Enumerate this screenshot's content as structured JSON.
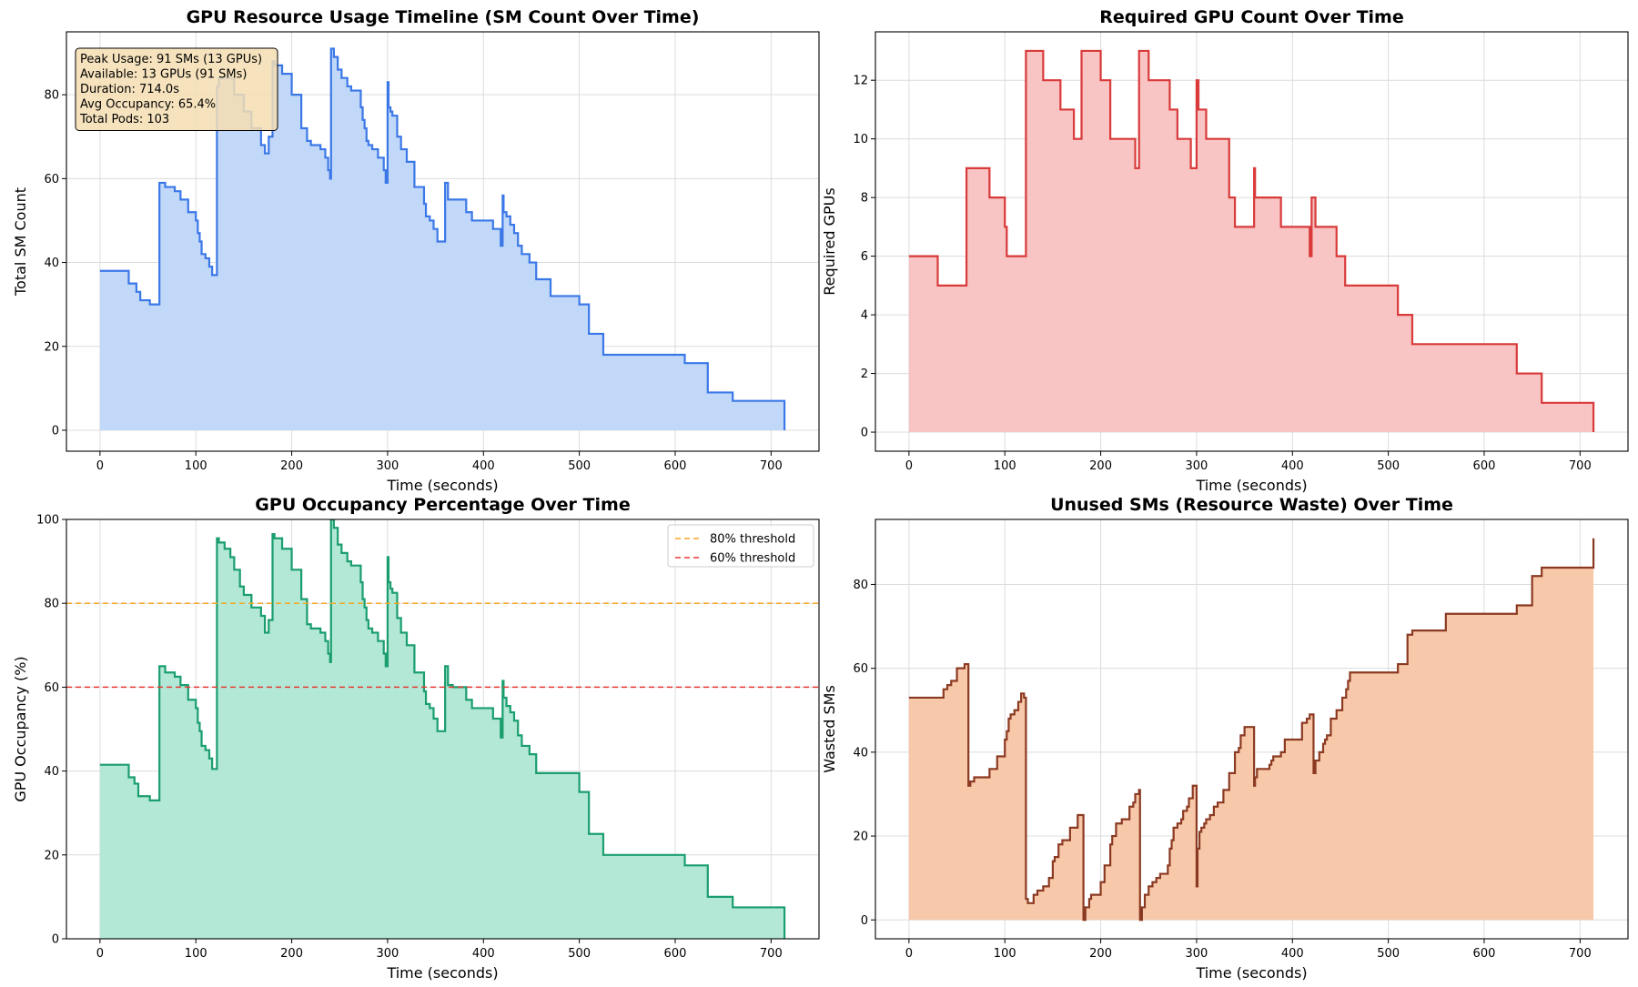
{
  "chart_data": [
    {
      "id": "sm",
      "type": "area",
      "title": "GPU Resource Usage Timeline (SM Count Over Time)",
      "xlabel": "Time (seconds)",
      "ylabel": "Total SM Count",
      "xlim": [
        -35,
        750
      ],
      "ylim": [
        -5,
        95
      ],
      "xticks": [
        0,
        100,
        200,
        300,
        400,
        500,
        600,
        700
      ],
      "yticks": [
        0,
        20,
        40,
        60,
        80
      ],
      "colors": {
        "line": "#3b78e7",
        "fill": "#c2d8f8"
      },
      "grid": true,
      "annotation": [
        "Peak Usage: 91 SMs (13 GPUs)",
        "Available: 13 GPUs (91 SMs)",
        "Duration: 714.0s",
        "Avg Occupancy: 65.4%",
        "Total Pods: 103"
      ],
      "x": [
        0,
        30,
        38,
        42,
        52,
        60,
        62,
        68,
        78,
        84,
        92,
        100,
        102,
        104,
        106,
        110,
        114,
        117,
        122,
        124,
        140,
        150,
        158,
        168,
        172,
        176,
        180,
        182,
        190,
        200,
        210,
        216,
        220,
        230,
        235,
        238,
        240,
        241,
        244,
        248,
        252,
        258,
        262,
        272,
        274,
        276,
        278,
        280,
        284,
        290,
        296,
        298,
        300,
        301,
        303,
        305,
        310,
        314,
        320,
        328,
        338,
        340,
        344,
        348,
        352,
        360,
        361,
        363,
        368,
        382,
        388,
        392,
        410,
        418,
        420,
        421,
        424,
        428,
        432,
        436,
        440,
        448,
        455,
        470,
        500,
        510,
        525,
        560,
        610,
        614,
        634,
        660,
        700,
        714
      ],
      "y": [
        38,
        35,
        33,
        31,
        30,
        30,
        59,
        58,
        57,
        55,
        52,
        50,
        47,
        45,
        42,
        41,
        39,
        37,
        82,
        84,
        80,
        76,
        72,
        68,
        66,
        70,
        88,
        87,
        85,
        80,
        72,
        69,
        68,
        67,
        65,
        62,
        60,
        91,
        89,
        86,
        84,
        82,
        81,
        77,
        74,
        72,
        69,
        68,
        67,
        65,
        62,
        59,
        83,
        77,
        76,
        75,
        70,
        67,
        64,
        58,
        54,
        51,
        50,
        48,
        45,
        59,
        59,
        55,
        55,
        52,
        50,
        50,
        48,
        44,
        56,
        52,
        51,
        49,
        47,
        44,
        42,
        40,
        36,
        32,
        30,
        23,
        18,
        18,
        16,
        16,
        9,
        7,
        7,
        0
      ]
    },
    {
      "id": "gpus",
      "type": "area",
      "title": "Required GPU Count Over Time",
      "xlabel": "Time (seconds)",
      "ylabel": "Required GPUs",
      "xlim": [
        -35,
        750
      ],
      "ylim": [
        -0.65,
        13.65
      ],
      "xticks": [
        0,
        100,
        200,
        300,
        400,
        500,
        600,
        700
      ],
      "yticks": [
        0,
        2,
        4,
        6,
        8,
        10,
        12
      ],
      "colors": {
        "line": "#d93a3a",
        "fill": "#f8c4c4"
      },
      "grid": true,
      "x": [
        0,
        30,
        60,
        84,
        100,
        102,
        122,
        124,
        140,
        158,
        172,
        180,
        182,
        200,
        210,
        236,
        240,
        241,
        250,
        272,
        280,
        294,
        298,
        300,
        302,
        310,
        334,
        340,
        348,
        360,
        361,
        363,
        388,
        410,
        415,
        418,
        420,
        424,
        428,
        446,
        455,
        510,
        525,
        600,
        634,
        660,
        714
      ],
      "y": [
        6,
        5,
        9,
        8,
        7,
        6,
        13,
        13,
        12,
        11,
        10,
        13,
        13,
        12,
        10,
        9,
        13,
        13,
        12,
        11,
        10,
        9,
        9,
        12,
        11,
        10,
        8,
        7,
        7,
        9,
        8,
        8,
        7,
        7,
        7,
        6,
        8,
        7,
        7,
        6,
        5,
        4,
        3,
        3,
        2,
        1,
        0
      ]
    },
    {
      "id": "occupancy",
      "type": "area",
      "title": "GPU Occupancy Percentage Over Time",
      "xlabel": "Time (seconds)",
      "ylabel": "GPU Occupancy (%)",
      "xlim": [
        -35,
        750
      ],
      "ylim": [
        0,
        100
      ],
      "xticks": [
        0,
        100,
        200,
        300,
        400,
        500,
        600,
        700
      ],
      "yticks": [
        0,
        20,
        40,
        60,
        80,
        100
      ],
      "colors": {
        "line": "#1a9e6e",
        "fill": "#b3e8d6"
      },
      "grid": true,
      "thresholds": [
        {
          "label": "80% threshold",
          "value": 80,
          "color": "#f5a623"
        },
        {
          "label": "60% threshold",
          "value": 60,
          "color": "#e53935"
        }
      ],
      "legend_position": "upper right",
      "x": [
        0,
        30,
        36,
        40,
        52,
        60,
        62,
        68,
        78,
        84,
        92,
        100,
        102,
        104,
        106,
        110,
        114,
        117,
        122,
        124,
        130,
        136,
        140,
        146,
        150,
        158,
        168,
        172,
        176,
        180,
        182,
        190,
        200,
        210,
        216,
        220,
        230,
        235,
        238,
        240,
        241,
        244,
        248,
        252,
        258,
        262,
        272,
        274,
        276,
        278,
        280,
        284,
        290,
        296,
        298,
        300,
        301,
        303,
        305,
        310,
        314,
        320,
        328,
        338,
        340,
        344,
        348,
        352,
        360,
        361,
        363,
        368,
        382,
        388,
        392,
        410,
        418,
        420,
        421,
        424,
        428,
        432,
        436,
        440,
        448,
        455,
        500,
        510,
        525,
        560,
        610,
        614,
        634,
        660,
        714
      ],
      "y": [
        41.5,
        38.5,
        37,
        34,
        33,
        33,
        65,
        63.5,
        62.5,
        60.5,
        57,
        55,
        51.5,
        49.5,
        46,
        45,
        43,
        40.5,
        95.5,
        94.5,
        93,
        91,
        88,
        84,
        82,
        79,
        77,
        73,
        76,
        96.5,
        95.5,
        93,
        88,
        81,
        75,
        74,
        73,
        71,
        68,
        66,
        100,
        98,
        94,
        92,
        90,
        89,
        85,
        81,
        79,
        76,
        74,
        73,
        71,
        68,
        65,
        91,
        85,
        83.5,
        82.5,
        76.5,
        73,
        70,
        63.5,
        59,
        56,
        55,
        52.5,
        49.5,
        65,
        65,
        60.5,
        60,
        57,
        55,
        55,
        52.5,
        48,
        61.5,
        57.5,
        55.5,
        54,
        52,
        48.5,
        46,
        44,
        39.5,
        35,
        25,
        20,
        20,
        17.5,
        17.5,
        10,
        7.5,
        0
      ]
    },
    {
      "id": "waste",
      "type": "area",
      "title": "Unused SMs (Resource Waste) Over Time",
      "xlabel": "Time (seconds)",
      "ylabel": "Wasted SMs",
      "xlim": [
        -35,
        750
      ],
      "ylim": [
        -4.5,
        95.5
      ],
      "xticks": [
        0,
        100,
        200,
        300,
        400,
        500,
        600,
        700
      ],
      "yticks": [
        0,
        20,
        40,
        60,
        80
      ],
      "colors": {
        "line": "#8b3a22",
        "fill": "#f8c8aa"
      },
      "grid": true,
      "x": [
        0,
        30,
        36,
        40,
        44,
        50,
        58,
        60,
        62,
        64,
        68,
        78,
        84,
        92,
        98,
        100,
        102,
        104,
        106,
        110,
        114,
        117,
        120,
        122,
        124,
        130,
        134,
        140,
        146,
        150,
        152,
        156,
        160,
        164,
        168,
        176,
        180,
        182,
        184,
        188,
        190,
        200,
        204,
        210,
        212,
        216,
        222,
        226,
        230,
        234,
        236,
        240,
        241,
        243,
        246,
        250,
        254,
        258,
        262,
        270,
        272,
        274,
        276,
        280,
        284,
        286,
        290,
        292,
        296,
        298,
        300,
        301,
        303,
        305,
        308,
        310,
        314,
        318,
        322,
        328,
        334,
        340,
        344,
        346,
        350,
        354,
        360,
        361,
        363,
        368,
        376,
        378,
        380,
        382,
        388,
        392,
        396,
        400,
        410,
        415,
        418,
        420,
        422,
        424,
        428,
        432,
        434,
        436,
        440,
        446,
        452,
        456,
        458,
        460,
        500,
        510,
        520,
        525,
        560,
        610,
        614,
        634,
        650,
        660,
        700,
        714
      ],
      "y": [
        53,
        53,
        55,
        56,
        57,
        60,
        61,
        61,
        32,
        33,
        34,
        34,
        36,
        39,
        39,
        43,
        45,
        48,
        49,
        50,
        52,
        54,
        53,
        5,
        4,
        6,
        7,
        8,
        10,
        14,
        15,
        18,
        19,
        19,
        22,
        25,
        25,
        0,
        3,
        5,
        6,
        9,
        13,
        18,
        20,
        23,
        24,
        24,
        27,
        28,
        30,
        31,
        0,
        3,
        6,
        8,
        9,
        10,
        11,
        13,
        17,
        19,
        22,
        23,
        24,
        26,
        27,
        29,
        32,
        32,
        8,
        17,
        21,
        22,
        23,
        24,
        25,
        27,
        28,
        31,
        35,
        40,
        41,
        44,
        46,
        46,
        32,
        34,
        36,
        36,
        37,
        38,
        39,
        39,
        40,
        43,
        43,
        43,
        47,
        48,
        49,
        49,
        35,
        38,
        40,
        42,
        43,
        44,
        48,
        50,
        53,
        55,
        57,
        59,
        59,
        61,
        68,
        69,
        73,
        73,
        73,
        75,
        82,
        84,
        84,
        91
      ]
    }
  ]
}
